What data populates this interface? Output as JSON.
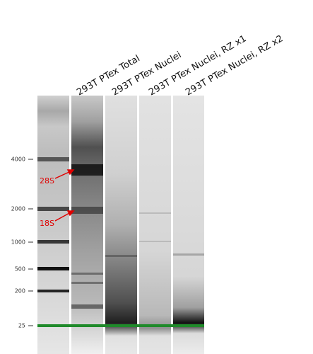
{
  "lane_labels": [
    "293T PTex Total",
    "293T PTex Nuclei",
    "293T PTex Nuclei, RZ x1",
    "293T PTex Nuclei, RZ x2"
  ],
  "ladder_labels": [
    "4000",
    "2000",
    "1000",
    "500",
    "200",
    "25"
  ],
  "annotations": [
    "28S",
    "18S"
  ]
}
